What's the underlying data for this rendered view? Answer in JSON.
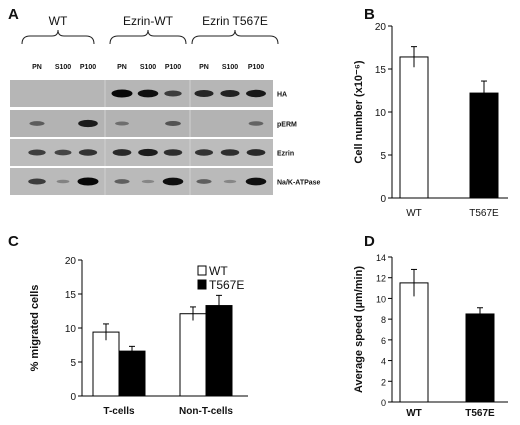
{
  "panel_letters": {
    "a": "A",
    "b": "B",
    "c": "C",
    "d": "D"
  },
  "blot": {
    "group_labels": [
      "WT",
      "Ezrin-WT",
      "Ezrin T567E"
    ],
    "lane_labels": [
      "PN",
      "S100",
      "P100",
      "PN",
      "S100",
      "P100",
      "PN",
      "S100",
      "P100"
    ],
    "row_labels": [
      "HA",
      "pERM",
      "Ezrin",
      "Na/K-ATPase"
    ],
    "background_colors": [
      "#b6b6b6",
      "#b3b3b3",
      "#bcbcbc",
      "#bababa"
    ],
    "band_color": "#080808",
    "band_intensities": [
      [
        0,
        0,
        0,
        1.0,
        0.95,
        0.6,
        0.78,
        0.8,
        0.88
      ],
      [
        0.35,
        0,
        0.85,
        0.2,
        0,
        0.42,
        0,
        0,
        0.3
      ],
      [
        0.6,
        0.55,
        0.7,
        0.75,
        0.85,
        0.72,
        0.68,
        0.72,
        0.75
      ],
      [
        0.62,
        0.08,
        1.0,
        0.35,
        0.05,
        0.95,
        0.35,
        0.05,
        0.95
      ]
    ]
  },
  "chart_data": [
    {
      "panel": "B",
      "type": "bar",
      "categories": [
        "WT",
        "T567E"
      ],
      "values": [
        16.4,
        12.2
      ],
      "errors": [
        1.2,
        1.4
      ],
      "colors": [
        "#ffffff",
        "#000000"
      ],
      "ylabel": "Cell number (x10⁻⁶)",
      "ylim": [
        0,
        20
      ],
      "yticks": [
        0,
        5,
        10,
        15,
        20
      ]
    },
    {
      "panel": "C",
      "type": "bar",
      "categories": [
        "T-cells",
        "Non-T-cells"
      ],
      "series": [
        {
          "name": "WT",
          "values": [
            9.4,
            12.1
          ],
          "errors": [
            1.2,
            1.0
          ],
          "color": "#ffffff"
        },
        {
          "name": "T567E",
          "values": [
            6.6,
            13.3
          ],
          "errors": [
            0.7,
            1.5
          ],
          "color": "#000000"
        }
      ],
      "ylabel": "% migrated cells",
      "ylim": [
        0,
        20
      ],
      "yticks": [
        0,
        5,
        10,
        15,
        20
      ],
      "legend_position": "top-right"
    },
    {
      "panel": "D",
      "type": "bar",
      "categories": [
        "WT",
        "T567E"
      ],
      "values": [
        11.5,
        8.5
      ],
      "errors": [
        1.3,
        0.6
      ],
      "colors": [
        "#ffffff",
        "#000000"
      ],
      "ylabel": "Average speed (µm/min)",
      "ylim": [
        0,
        14
      ],
      "yticks": [
        0,
        2,
        4,
        6,
        8,
        10,
        12,
        14
      ]
    }
  ]
}
